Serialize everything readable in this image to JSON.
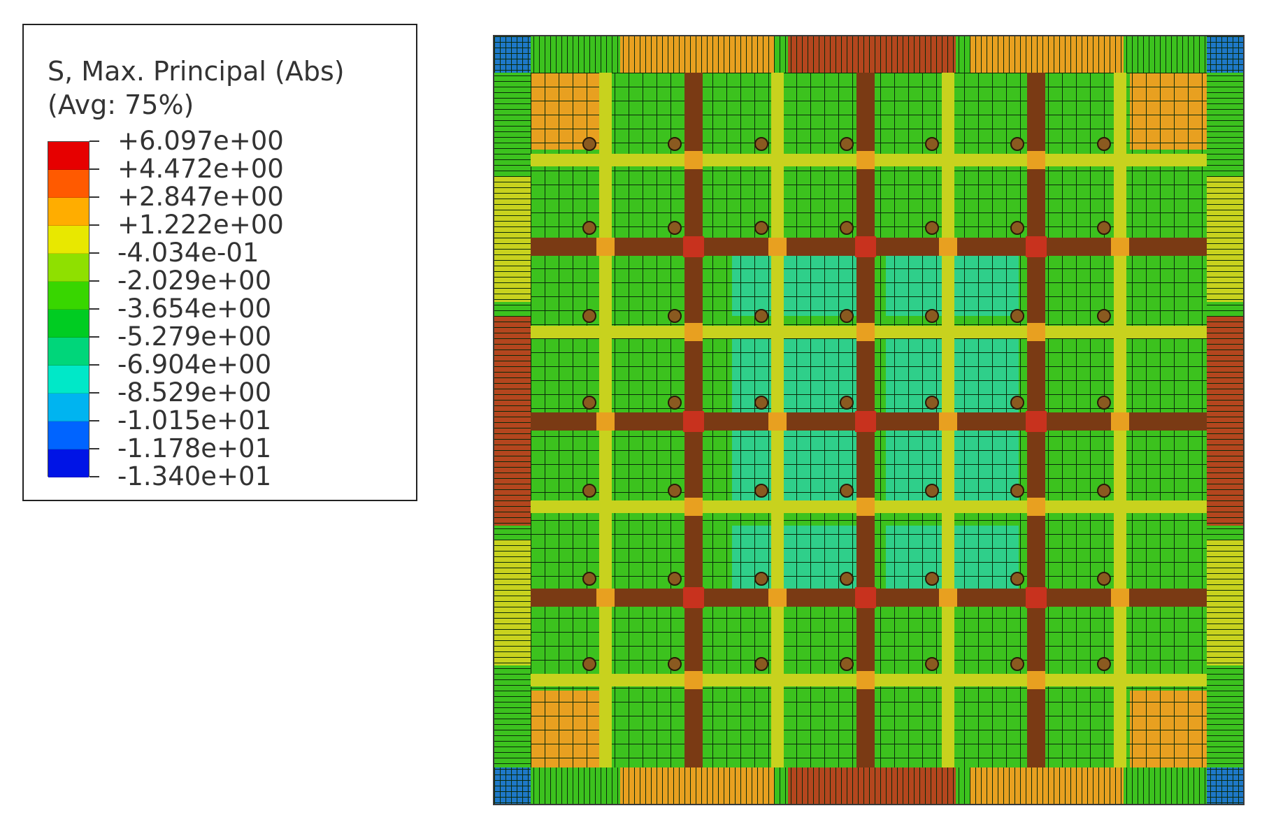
{
  "legend": {
    "title": "S, Max. Principal (Abs)",
    "subtitle": "(Avg: 75%)",
    "levels": [
      {
        "label": "+6.097e+00",
        "color": "#e60000"
      },
      {
        "label": "+4.472e+00",
        "color": "#ff5a00"
      },
      {
        "label": "+2.847e+00",
        "color": "#ffad00"
      },
      {
        "label": "+1.222e+00",
        "color": "#e8e800"
      },
      {
        "label": "-4.034e-01",
        "color": "#8fe000"
      },
      {
        "label": "-2.029e+00",
        "color": "#38d600"
      },
      {
        "label": "-3.654e+00",
        "color": "#00cc22"
      },
      {
        "label": "-5.279e+00",
        "color": "#00d67a"
      },
      {
        "label": "-6.904e+00",
        "color": "#00e8c8"
      },
      {
        "label": "-8.529e+00",
        "color": "#00b4f0"
      },
      {
        "label": "-1.015e+01",
        "color": "#0064ff"
      },
      {
        "label": "-1.178e+01",
        "color": "#0014e6"
      },
      {
        "label": "-1.340e+01",
        "color": ""
      }
    ]
  },
  "plot": {
    "content": "stress contour plot of gridded square plate",
    "colors": {
      "background": "#1e8a1e",
      "cell_green": "#3cc21e",
      "cell_teal": "#2fcf8a",
      "cell_yellow": "#c8d21e",
      "cell_orange": "#e8a020",
      "beam_dark": "#7a3a14",
      "beam_red": "#c8321e",
      "edge_red": "#b4461e",
      "grid_line": "#0a2a0a",
      "corner_blue": "#1e78c8"
    }
  }
}
